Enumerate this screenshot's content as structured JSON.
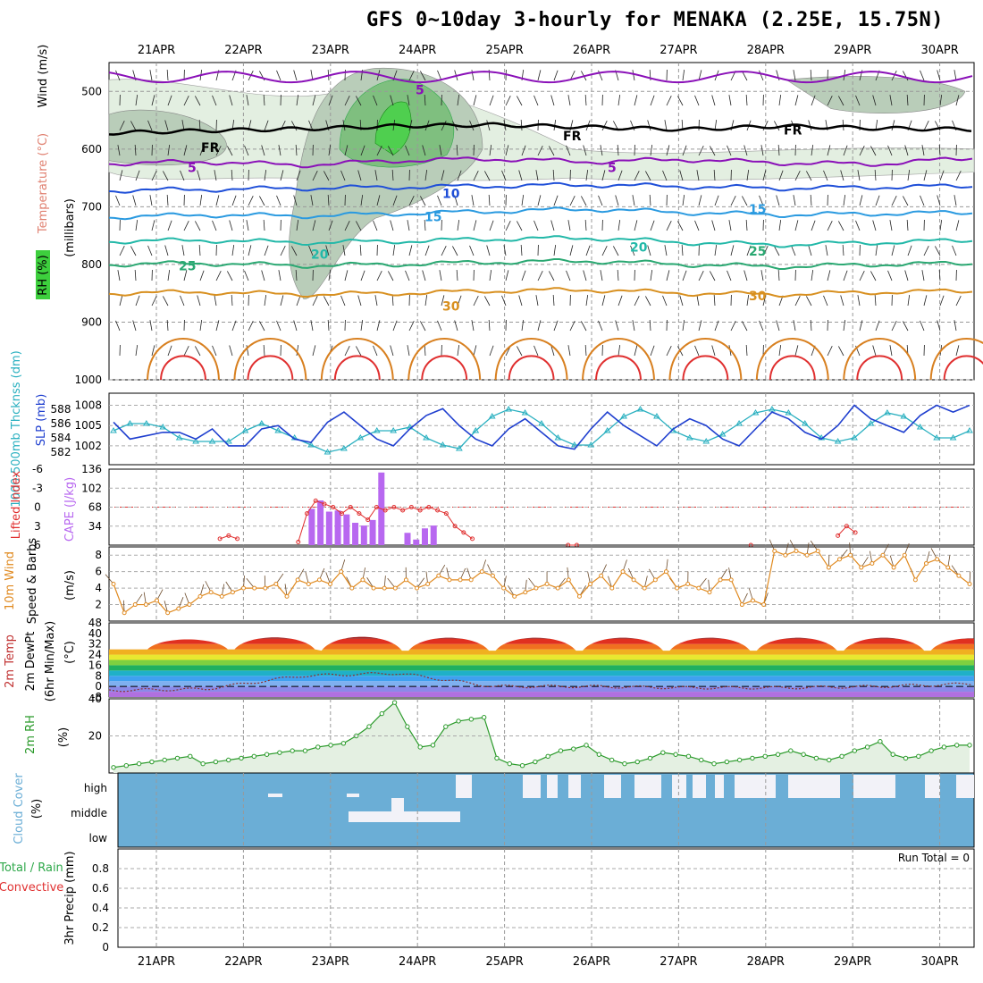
{
  "title": "GFS 0~10day 3-hourly for MENAKA (2.25E, 15.75N)",
  "colors": {
    "rh": "#2ea84a",
    "temperature": "#e03030",
    "wind": "#000000",
    "slp": "#1f3fcf",
    "thickness": "#2ab0c0",
    "lifted_index": "#e03030",
    "cape": "#b868f0",
    "wind10m": "#e08a20",
    "rh2m": "#2a9a2a",
    "cloud": "#6baed6",
    "precip": "#2ea84a"
  },
  "chart_data": [
    {
      "panel": "upper-air",
      "type": "heatmap",
      "x_dates": [
        "21APR",
        "22APR",
        "23APR",
        "24APR",
        "25APR",
        "26APR",
        "27APR",
        "28APR",
        "29APR",
        "30APR"
      ],
      "ylabel": "(millibars)",
      "yticks": [
        500,
        600,
        700,
        800,
        900,
        1000
      ],
      "ylim": [
        450,
        1000
      ],
      "labels": {
        "rh": "RH (%)",
        "temperature": "Temperature (°C)",
        "wind": "Wind (m/s)"
      },
      "temp_isotherms": [
        {
          "label": "5",
          "level": [
            625,
            622,
            628,
            620,
            617,
            622,
            618,
            624,
            626,
            615
          ]
        },
        {
          "label": "10",
          "level": [
            672,
            670,
            668,
            666,
            664,
            662,
            665,
            668,
            666,
            664
          ]
        },
        {
          "label": "15",
          "level": [
            718,
            714,
            716,
            712,
            708,
            704,
            710,
            714,
            712,
            710
          ]
        },
        {
          "label": "20",
          "level": [
            760,
            758,
            762,
            760,
            756,
            754,
            762,
            766,
            762,
            758
          ]
        },
        {
          "label": "25",
          "level": [
            800,
            798,
            802,
            800,
            796,
            794,
            800,
            804,
            800,
            798
          ]
        },
        {
          "label": "30",
          "level": [
            850,
            848,
            852,
            850,
            846,
            844,
            850,
            852,
            848,
            846
          ]
        }
      ],
      "contour_labels": [
        "5",
        "FR",
        "10",
        "15",
        "20",
        "25",
        "30",
        "10",
        "50"
      ],
      "freezing_level": [
        572,
        568,
        565,
        560,
        558,
        562,
        566,
        560,
        564,
        566
      ],
      "rh_moist_days": [
        "23APR",
        "24APR"
      ]
    },
    {
      "panel": "slp-thickness",
      "type": "line",
      "labels": {
        "slp": "SLP (mb)",
        "thickness": "1000-500mb Thcknss (dm)"
      },
      "y_left_ticks": [
        582,
        584,
        586,
        588
      ],
      "y_right_ticks": [
        1002,
        1005,
        1008
      ],
      "series": [
        {
          "name": "SLP",
          "values": [
            1005.5,
            1003,
            1003.5,
            1004,
            1004,
            1003,
            1004.5,
            1002,
            1002,
            1004.5,
            1005,
            1003,
            1002.5,
            1005.5,
            1007,
            1005,
            1003,
            1002,
            1004.5,
            1006.5,
            1007.5,
            1005,
            1003,
            1002,
            1004.5,
            1006,
            1004,
            1002,
            1001.5,
            1004.5,
            1007,
            1005,
            1003.5,
            1002,
            1004.5,
            1006,
            1005,
            1003,
            1002,
            1004.5,
            1007,
            1006,
            1004,
            1003,
            1005,
            1008,
            1006,
            1005,
            1004,
            1006.5,
            1008,
            1007,
            1008
          ]
        },
        {
          "name": "Thickness",
          "values": [
            585,
            586,
            586,
            585.5,
            584,
            583.5,
            583.5,
            583.5,
            585,
            586,
            585,
            584,
            583,
            582,
            582.5,
            584,
            585,
            585,
            585.5,
            584,
            583,
            582.5,
            585,
            587,
            588,
            587.5,
            586,
            584,
            583,
            583,
            585,
            587,
            588,
            587,
            585,
            584,
            583.5,
            584.5,
            586,
            587.5,
            588,
            587.5,
            586,
            584,
            583.5,
            584,
            586,
            587.5,
            587,
            585.5,
            584,
            584,
            585
          ]
        }
      ]
    },
    {
      "panel": "li-cape",
      "type": "bar",
      "labels": {
        "li": "Lifted Index",
        "cape": "CAPE (J/kg)"
      },
      "y_left_ticks": [
        "-6",
        "-3",
        "0",
        "3",
        "6"
      ],
      "y_right_ticks": [
        34,
        68,
        102,
        136
      ],
      "cape_bars": [
        {
          "day": 2.55,
          "value": 65
        },
        {
          "day": 2.65,
          "value": 80
        },
        {
          "day": 2.75,
          "value": 60
        },
        {
          "day": 2.85,
          "value": 62
        },
        {
          "day": 2.95,
          "value": 55
        },
        {
          "day": 3.05,
          "value": 40
        },
        {
          "day": 3.15,
          "value": 35
        },
        {
          "day": 3.25,
          "value": 45
        },
        {
          "day": 3.35,
          "value": 130
        },
        {
          "day": 3.65,
          "value": 22
        },
        {
          "day": 3.75,
          "value": 10
        },
        {
          "day": 3.85,
          "value": 30
        },
        {
          "day": 3.95,
          "value": 35
        }
      ],
      "li_values": [
        [
          1.5,
          5
        ],
        [
          1.6,
          4.5
        ],
        [
          1.7,
          5
        ],
        [
          2.4,
          5.5
        ],
        [
          2.5,
          1
        ],
        [
          2.6,
          -1
        ],
        [
          2.7,
          -0.5
        ],
        [
          2.8,
          0
        ],
        [
          2.9,
          1
        ],
        [
          3.0,
          0
        ],
        [
          3.1,
          1
        ],
        [
          3.2,
          2
        ],
        [
          3.3,
          0
        ],
        [
          3.4,
          0.5
        ],
        [
          3.5,
          0
        ],
        [
          3.6,
          0.5
        ],
        [
          3.7,
          0
        ],
        [
          3.8,
          0.5
        ],
        [
          3.9,
          0
        ],
        [
          4.0,
          0.5
        ],
        [
          4.1,
          1
        ],
        [
          4.2,
          3
        ],
        [
          4.3,
          4
        ],
        [
          4.4,
          5
        ],
        [
          5.5,
          6
        ],
        [
          5.6,
          6
        ],
        [
          7.6,
          6
        ],
        [
          8.6,
          4.5
        ],
        [
          8.7,
          3
        ],
        [
          8.8,
          4
        ]
      ]
    },
    {
      "panel": "wind10m",
      "type": "line",
      "labels": {
        "main": "10m Wind",
        "sub": "Speed & Barbs",
        "unit": "(m/s)"
      },
      "yticks": [
        2,
        4,
        6,
        8
      ],
      "ylim": [
        0,
        9
      ],
      "series": [
        {
          "name": "10m Wind Speed",
          "values": [
            4.5,
            1,
            2,
            2,
            2.5,
            1,
            1.5,
            2,
            3,
            3.5,
            3,
            3.5,
            4,
            4,
            4,
            4.5,
            3,
            5,
            4.5,
            5,
            4.5,
            6,
            4,
            5,
            4,
            4,
            4,
            5,
            4,
            4.5,
            5.5,
            5,
            5,
            5,
            6,
            5.5,
            4,
            3,
            3.5,
            4,
            4.5,
            4,
            5,
            3,
            4.5,
            5.5,
            4,
            6,
            5,
            4,
            5,
            6,
            4,
            4.5,
            4,
            3.5,
            5,
            5,
            2,
            2.5,
            2,
            8.5,
            8,
            8.5,
            8,
            8.5,
            6.5,
            7.5,
            8,
            6.5,
            7,
            8,
            6.5,
            8,
            5,
            7,
            7.5,
            6.5,
            5.5,
            4.5
          ]
        }
      ]
    },
    {
      "panel": "temp-dewpoint",
      "type": "area",
      "labels": {
        "temp": "2m Temp",
        "dewpt": "2m DewPt",
        "minmax": "(6hr Min/Max)",
        "unit": "(°C)"
      },
      "yticks": [
        -8,
        0,
        8,
        16,
        24,
        32,
        40,
        48
      ],
      "ylim": [
        -8,
        48
      ],
      "temp_max": [
        38,
        40,
        41,
        40,
        40,
        40,
        40,
        40,
        40,
        39.5
      ],
      "temp_min": [
        28,
        28,
        27,
        27,
        27,
        27,
        27,
        27,
        27,
        27
      ],
      "dewpoint": [
        -3,
        -2,
        8,
        10,
        0,
        0,
        -1,
        -1,
        0,
        2
      ]
    },
    {
      "panel": "rh2m",
      "type": "area",
      "labels": {
        "main": "2m RH",
        "unit": "(%)"
      },
      "yticks": [
        20,
        40
      ],
      "ylim": [
        0,
        40
      ],
      "values": [
        3,
        4,
        5,
        6,
        7,
        8,
        9,
        5,
        6,
        7,
        8,
        9,
        10,
        11,
        12,
        12,
        14,
        15,
        16,
        20,
        25,
        32,
        38,
        25,
        14,
        15,
        25,
        28,
        29,
        30,
        8,
        5,
        4,
        6,
        9,
        12,
        13,
        15,
        10,
        7,
        5,
        6,
        8,
        11,
        10,
        9,
        7,
        5,
        6,
        7,
        8,
        9,
        10,
        12,
        10,
        8,
        7,
        9,
        12,
        14,
        17,
        10,
        8,
        9,
        12,
        14,
        15,
        15
      ]
    },
    {
      "panel": "cloud-cover",
      "type": "heatmap",
      "labels": {
        "main": "Cloud Cover",
        "unit": "(%)",
        "levels": [
          "high",
          "middle",
          "low"
        ]
      }
    },
    {
      "panel": "precip",
      "type": "bar",
      "labels": {
        "main": "3hr Precip (mm)",
        "total": "Total / Rain",
        "convective": "Convective",
        "run_total": "Run Total = 0"
      },
      "yticks": [
        "0",
        "0.2",
        "0.4",
        "0.6",
        "0.8"
      ],
      "ylim": [
        0,
        1
      ],
      "values": []
    }
  ]
}
